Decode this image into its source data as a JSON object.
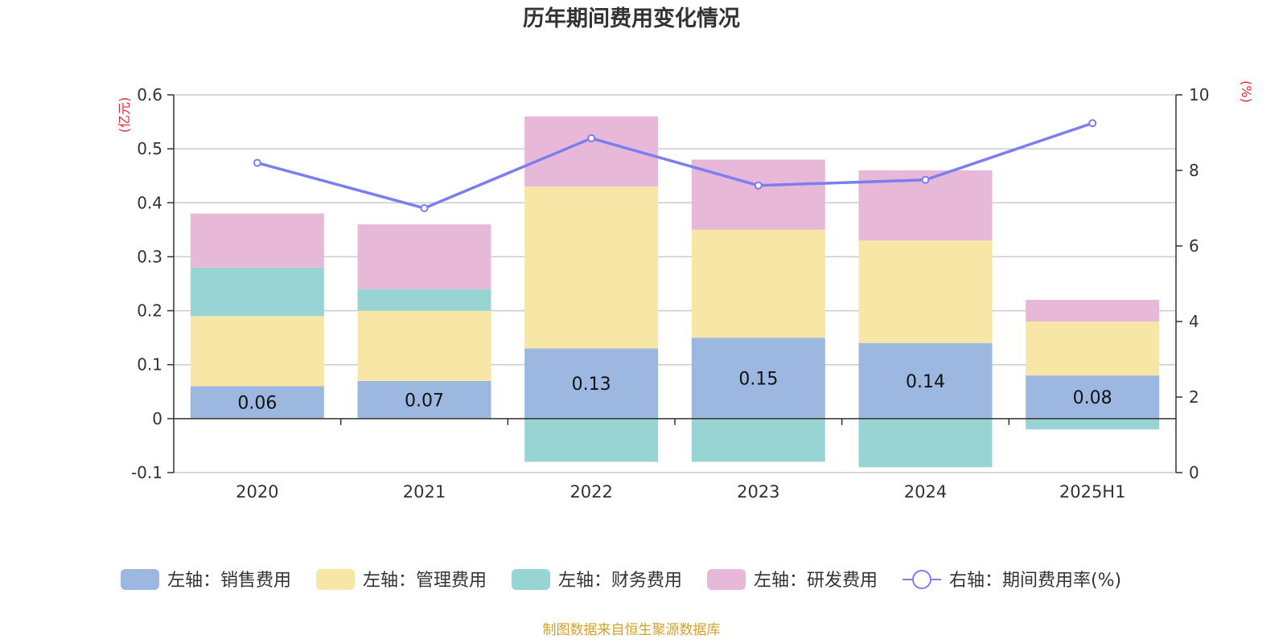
{
  "chart_data": {
    "type": "bar",
    "title": "历年期间费用变化情况",
    "categories": [
      "2020",
      "2021",
      "2022",
      "2023",
      "2024",
      "2025H1"
    ],
    "left_axis": {
      "unit": "(亿元)",
      "ylim": [
        -0.1,
        0.6
      ],
      "ticks": [
        -0.1,
        0,
        0.1,
        0.2,
        0.3,
        0.4,
        0.5,
        0.6
      ],
      "tick_labels": [
        "-0.1",
        "0",
        "0.1",
        "0.2",
        "0.3",
        "0.4",
        "0.5",
        "0.6"
      ]
    },
    "right_axis": {
      "unit": "(%)",
      "ylim": [
        0,
        10
      ],
      "ticks": [
        0,
        2,
        4,
        6,
        8,
        10
      ],
      "tick_labels": [
        "0",
        "2",
        "4",
        "6",
        "8",
        "10"
      ]
    },
    "series": [
      {
        "name": "左轴：销售费用",
        "type": "bar",
        "axis": "left",
        "color": "#9cb8e0",
        "values": [
          0.06,
          0.07,
          0.13,
          0.15,
          0.14,
          0.08
        ],
        "labels": [
          "0.06",
          "0.07",
          "0.13",
          "0.15",
          "0.14",
          "0.08"
        ]
      },
      {
        "name": "左轴：管理费用",
        "type": "bar",
        "axis": "left",
        "color": "#f8e6a6",
        "values": [
          0.13,
          0.13,
          0.3,
          0.2,
          0.19,
          0.1
        ]
      },
      {
        "name": "左轴：财务费用",
        "type": "bar",
        "axis": "left",
        "color": "#98d4d4",
        "values": [
          0.09,
          0.04,
          -0.08,
          -0.08,
          -0.09,
          -0.02
        ]
      },
      {
        "name": "左轴：研发费用",
        "type": "bar",
        "axis": "left",
        "color": "#e8b8d8",
        "values": [
          0.1,
          0.12,
          0.13,
          0.13,
          0.13,
          0.04
        ]
      },
      {
        "name": "右轴：期间费用率(%)",
        "type": "line",
        "axis": "right",
        "color": "#7b7ef0",
        "values": [
          8.2,
          7.0,
          8.85,
          7.6,
          7.75,
          9.25
        ]
      }
    ],
    "grid": true,
    "legend_position": "bottom",
    "source_note": "制图数据来自恒生聚源数据库"
  }
}
